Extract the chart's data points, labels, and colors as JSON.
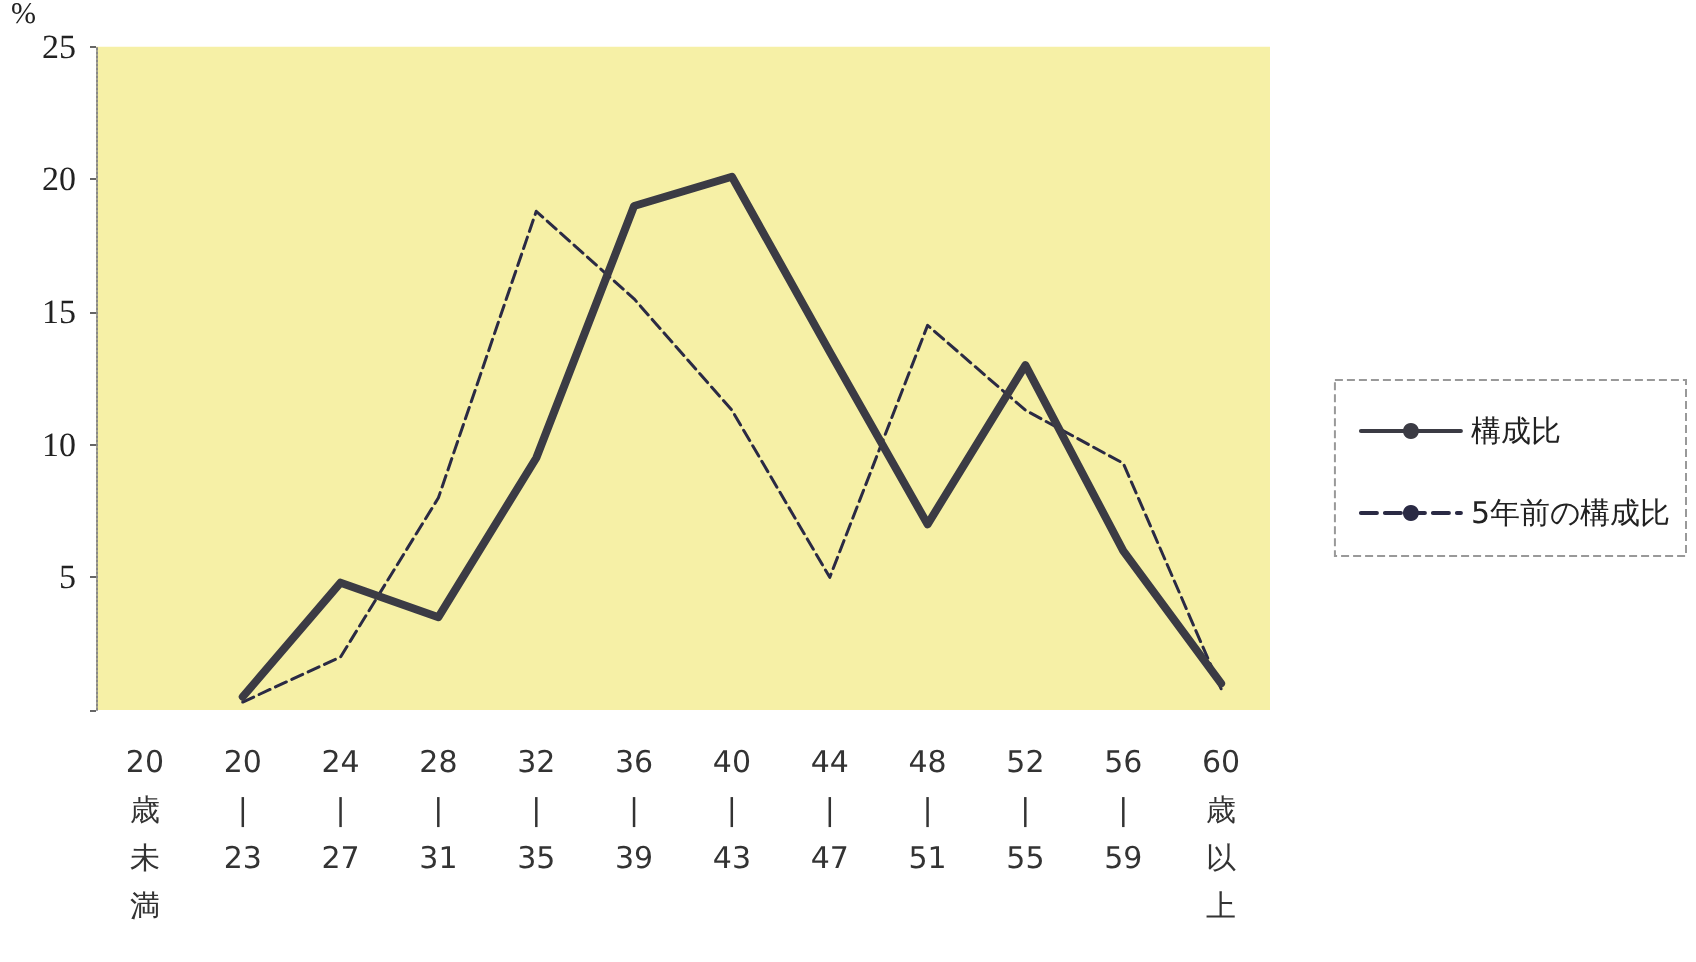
{
  "chart_data": {
    "type": "line",
    "ylabel": "%",
    "categories": [
      "20歳未満",
      "20|23",
      "24|27",
      "28|31",
      "32|35",
      "36|39",
      "40|43",
      "44|47",
      "48|51",
      "52|55",
      "56|59",
      "60歳以上"
    ],
    "series": [
      {
        "name": "構成比",
        "color": "#3b3b44",
        "line_style": "solid",
        "values": [
          null,
          0.5,
          4.8,
          3.5,
          9.5,
          19,
          20.1,
          13.5,
          7,
          13,
          6,
          1
        ]
      },
      {
        "name": "5年前の構成比",
        "color": "#2a2a44",
        "line_style": "dashed",
        "values": [
          null,
          0.3,
          2,
          8,
          18.8,
          15.5,
          11.3,
          5,
          14.5,
          11.3,
          9.3,
          0.8
        ]
      }
    ],
    "ylim": [
      0,
      25
    ],
    "yticks": [
      {
        "value": 0,
        "label": null
      },
      5,
      10,
      15,
      20,
      25
    ],
    "grid": false,
    "legend": "right",
    "marker": "none"
  }
}
